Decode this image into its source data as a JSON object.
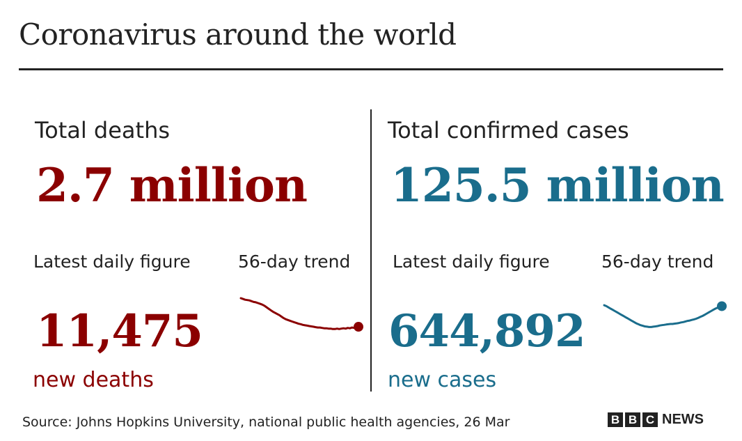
{
  "title": "Coronavirus around the world",
  "colors": {
    "deaths": "#8b0000",
    "cases": "#1a6d8c",
    "text": "#222222"
  },
  "chart_data": [
    {
      "type": "line",
      "name": "deaths",
      "heading": "Total deaths",
      "total": "2.7 million",
      "latest_label": "Latest daily figure",
      "latest_value": "11,475",
      "latest_unit": "new deaths",
      "trend_label": "56-day trend",
      "trend_values": [
        1.0,
        0.98,
        0.96,
        0.95,
        0.94,
        0.92,
        0.9,
        0.89,
        0.87,
        0.85,
        0.83,
        0.8,
        0.76,
        0.72,
        0.68,
        0.64,
        0.61,
        0.58,
        0.55,
        0.51,
        0.47,
        0.44,
        0.42,
        0.4,
        0.38,
        0.36,
        0.34,
        0.32,
        0.31,
        0.29,
        0.28,
        0.27,
        0.26,
        0.25,
        0.24,
        0.23,
        0.22,
        0.22,
        0.21,
        0.2,
        0.2,
        0.19,
        0.19,
        0.18,
        0.18,
        0.19,
        0.18,
        0.19,
        0.2,
        0.19,
        0.21,
        0.2,
        0.22,
        0.21,
        0.23,
        0.24
      ]
    },
    {
      "type": "line",
      "name": "cases",
      "heading": "Total confirmed cases",
      "total": "125.5 million",
      "latest_label": "Latest daily figure",
      "latest_value": "644,892",
      "latest_unit": "new cases",
      "trend_label": "56-day trend",
      "trend_values": [
        0.77,
        0.74,
        0.7,
        0.66,
        0.62,
        0.58,
        0.54,
        0.5,
        0.46,
        0.42,
        0.38,
        0.34,
        0.3,
        0.26,
        0.22,
        0.18,
        0.15,
        0.12,
        0.1,
        0.08,
        0.07,
        0.06,
        0.06,
        0.07,
        0.08,
        0.09,
        0.11,
        0.12,
        0.13,
        0.14,
        0.15,
        0.16,
        0.16,
        0.17,
        0.18,
        0.19,
        0.21,
        0.22,
        0.24,
        0.26,
        0.27,
        0.29,
        0.31,
        0.33,
        0.36,
        0.39,
        0.42,
        0.46,
        0.5,
        0.54,
        0.58,
        0.62,
        0.66,
        0.69,
        0.72,
        0.74
      ]
    }
  ],
  "footer": {
    "source": "Source: Johns Hopkins University, national public health agencies, 26 Mar",
    "logo_letters": [
      "B",
      "B",
      "C"
    ],
    "logo_word": "NEWS"
  }
}
